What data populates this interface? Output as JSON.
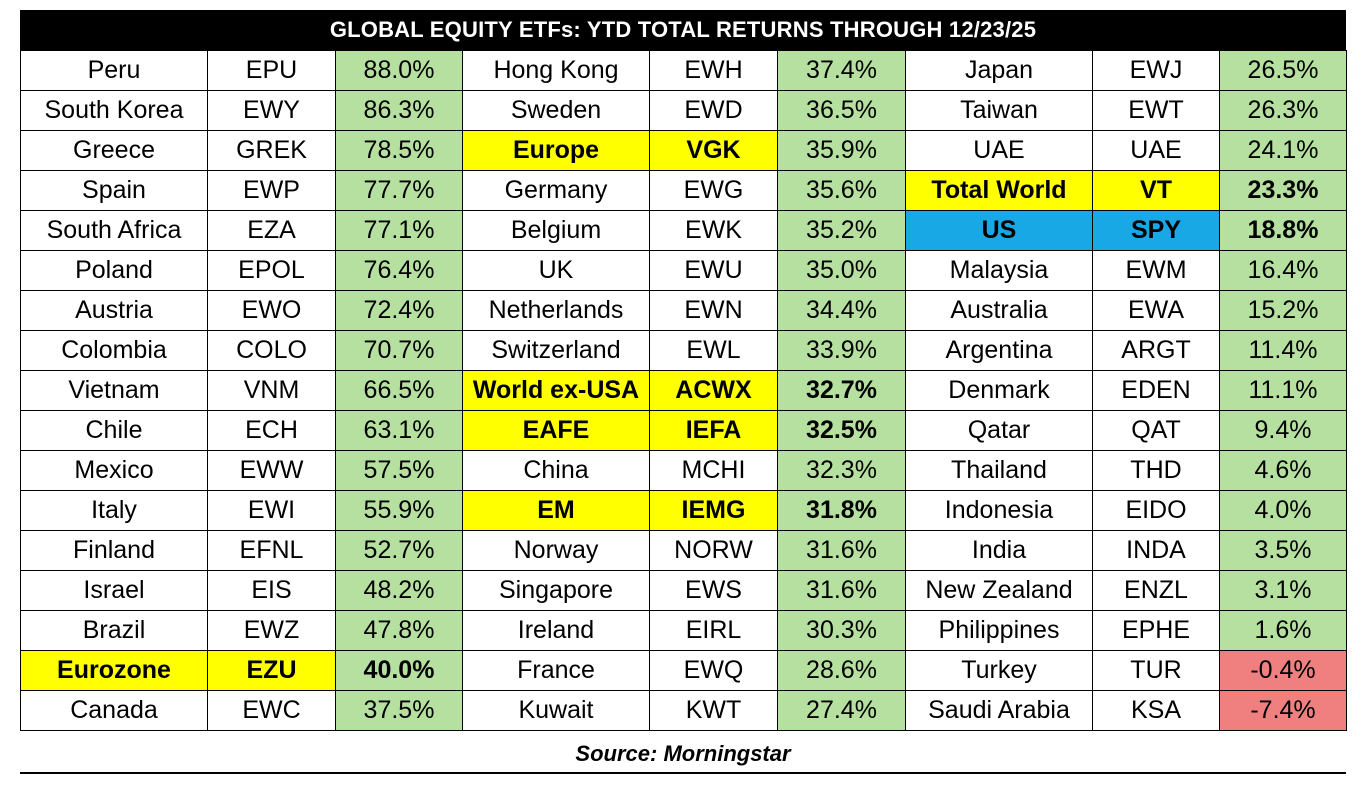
{
  "chart_data": {
    "type": "table",
    "title": "GLOBAL EQUITY ETFs: YTD TOTAL RETURNS THROUGH 12/23/25",
    "source": "Source:  Morningstar",
    "colors": {
      "positive": "#b6e0a0",
      "negative": "#f08080",
      "highlight_yellow": "#ffff00",
      "highlight_blue": "#19a8e6",
      "title_background": "#000000"
    },
    "columns": [
      [
        {
          "country": "Peru",
          "ticker": "EPU",
          "ret": "88.0%"
        },
        {
          "country": "South Korea",
          "ticker": "EWY",
          "ret": "86.3%"
        },
        {
          "country": "Greece",
          "ticker": "GREK",
          "ret": "78.5%"
        },
        {
          "country": "Spain",
          "ticker": "EWP",
          "ret": "77.7%"
        },
        {
          "country": "South Africa",
          "ticker": "EZA",
          "ret": "77.1%"
        },
        {
          "country": "Poland",
          "ticker": "EPOL",
          "ret": "76.4%"
        },
        {
          "country": "Austria",
          "ticker": "EWO",
          "ret": "72.4%"
        },
        {
          "country": "Colombia",
          "ticker": "COLO",
          "ret": "70.7%"
        },
        {
          "country": "Vietnam",
          "ticker": "VNM",
          "ret": "66.5%"
        },
        {
          "country": "Chile",
          "ticker": "ECH",
          "ret": "63.1%"
        },
        {
          "country": "Mexico",
          "ticker": "EWW",
          "ret": "57.5%"
        },
        {
          "country": "Italy",
          "ticker": "EWI",
          "ret": "55.9%"
        },
        {
          "country": "Finland",
          "ticker": "EFNL",
          "ret": "52.7%"
        },
        {
          "country": "Israel",
          "ticker": "EIS",
          "ret": "48.2%"
        },
        {
          "country": "Brazil",
          "ticker": "EWZ",
          "ret": "47.8%"
        },
        {
          "country": "Eurozone",
          "ticker": "EZU",
          "ret": "40.0%",
          "highlight": "yellow"
        },
        {
          "country": "Canada",
          "ticker": "EWC",
          "ret": "37.5%"
        }
      ],
      [
        {
          "country": "Hong Kong",
          "ticker": "EWH",
          "ret": "37.4%"
        },
        {
          "country": "Sweden",
          "ticker": "EWD",
          "ret": "36.5%"
        },
        {
          "country": "Europe",
          "ticker": "VGK",
          "ret": "35.9%",
          "highlight": "yellow",
          "ret_bold": false
        },
        {
          "country": "Germany",
          "ticker": "EWG",
          "ret": "35.6%"
        },
        {
          "country": "Belgium",
          "ticker": "EWK",
          "ret": "35.2%"
        },
        {
          "country": "UK",
          "ticker": "EWU",
          "ret": "35.0%"
        },
        {
          "country": "Netherlands",
          "ticker": "EWN",
          "ret": "34.4%"
        },
        {
          "country": "Switzerland",
          "ticker": "EWL",
          "ret": "33.9%"
        },
        {
          "country": "World ex-USA",
          "ticker": "ACWX",
          "ret": "32.7%",
          "highlight": "yellow"
        },
        {
          "country": "EAFE",
          "ticker": "IEFA",
          "ret": "32.5%",
          "highlight": "yellow"
        },
        {
          "country": "China",
          "ticker": "MCHI",
          "ret": "32.3%"
        },
        {
          "country": "EM",
          "ticker": "IEMG",
          "ret": "31.8%",
          "highlight": "yellow"
        },
        {
          "country": "Norway",
          "ticker": "NORW",
          "ret": "31.6%"
        },
        {
          "country": "Singapore",
          "ticker": "EWS",
          "ret": "31.6%"
        },
        {
          "country": "Ireland",
          "ticker": "EIRL",
          "ret": "30.3%"
        },
        {
          "country": "France",
          "ticker": "EWQ",
          "ret": "28.6%"
        },
        {
          "country": "Kuwait",
          "ticker": "KWT",
          "ret": "27.4%"
        }
      ],
      [
        {
          "country": "Japan",
          "ticker": "EWJ",
          "ret": "26.5%"
        },
        {
          "country": "Taiwan",
          "ticker": "EWT",
          "ret": "26.3%"
        },
        {
          "country": "UAE",
          "ticker": "UAE",
          "ret": "24.1%"
        },
        {
          "country": "Total World",
          "ticker": "VT",
          "ret": "23.3%",
          "highlight": "yellow"
        },
        {
          "country": "US",
          "ticker": "SPY",
          "ret": "18.8%",
          "highlight": "blue"
        },
        {
          "country": "Malaysia",
          "ticker": "EWM",
          "ret": "16.4%"
        },
        {
          "country": "Australia",
          "ticker": "EWA",
          "ret": "15.2%"
        },
        {
          "country": "Argentina",
          "ticker": "ARGT",
          "ret": "11.4%"
        },
        {
          "country": "Denmark",
          "ticker": "EDEN",
          "ret": "11.1%"
        },
        {
          "country": "Qatar",
          "ticker": "QAT",
          "ret": "9.4%"
        },
        {
          "country": "Thailand",
          "ticker": "THD",
          "ret": "4.6%"
        },
        {
          "country": "Indonesia",
          "ticker": "EIDO",
          "ret": "4.0%"
        },
        {
          "country": "India",
          "ticker": "INDA",
          "ret": "3.5%"
        },
        {
          "country": "New Zealand",
          "ticker": "ENZL",
          "ret": "3.1%"
        },
        {
          "country": "Philippines",
          "ticker": "EPHE",
          "ret": "1.6%"
        },
        {
          "country": "Turkey",
          "ticker": "TUR",
          "ret": "-0.4%",
          "negative": true
        },
        {
          "country": "Saudi Arabia",
          "ticker": "KSA",
          "ret": "-7.4%",
          "negative": true
        }
      ]
    ]
  }
}
